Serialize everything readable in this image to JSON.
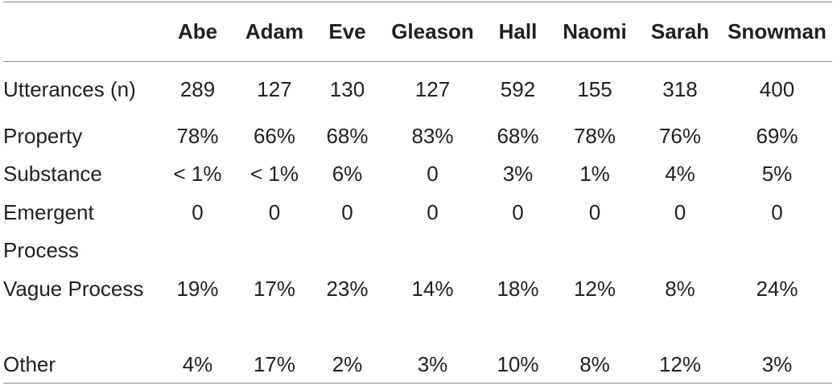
{
  "table": {
    "columns": [
      "",
      "Abe",
      "Adam",
      "Eve",
      "Gleason",
      "Hall",
      "Naomi",
      "Sarah",
      "Snowman"
    ],
    "rows": [
      {
        "label": "Utterances (n)",
        "values": [
          "289",
          "127",
          "130",
          "127",
          "592",
          "155",
          "318",
          "400"
        ]
      },
      {
        "label": "Property",
        "values": [
          "78%",
          "66%",
          "68%",
          "83%",
          "68%",
          "78%",
          "76%",
          "69%"
        ]
      },
      {
        "label": "Substance",
        "values": [
          "< 1%",
          "< 1%",
          "6%",
          "0",
          "3%",
          "1%",
          "4%",
          "5%"
        ]
      },
      {
        "label": "Emergent Process",
        "values": [
          "0",
          "0",
          "0",
          "0",
          "0",
          "0",
          "0",
          "0"
        ]
      },
      {
        "label": "Vague Process",
        "values": [
          "19%",
          "17%",
          "23%",
          "14%",
          "18%",
          "12%",
          "8%",
          "24%"
        ]
      },
      {
        "label": "Other",
        "values": [
          "4%",
          "17%",
          "2%",
          "3%",
          "10%",
          "8%",
          "12%",
          "3%"
        ]
      }
    ]
  }
}
